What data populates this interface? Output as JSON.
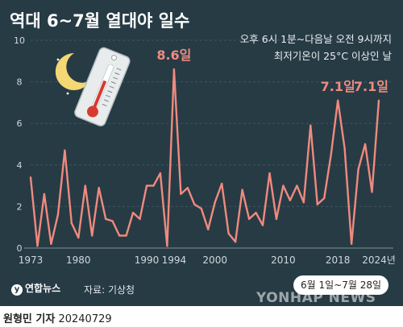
{
  "header": {
    "title": "역대 6~7월 열대야 일수",
    "subtitle_line1": "오후 6시 1분~다음날 오전 9시까지",
    "subtitle_line2": "최저기온이 25°C 이상인 날"
  },
  "footer": {
    "range_label": "6월 1일~7월 28일",
    "source": "자료: 기상청",
    "logo_text": "연합뉴스",
    "watermark": "YONHAP NEWS",
    "credit_name": "원형민 기자",
    "credit_date": "20240729"
  },
  "colors": {
    "panel": "#273b45",
    "line": "#f08a7e",
    "grid": "#3f5560",
    "axis_text": "#cfd8dc"
  },
  "icons": [
    "moon-icon",
    "thermometer-icon"
  ],
  "chart_data": {
    "type": "line",
    "title": "역대 6~7월 열대야 일수",
    "x_label_text": [
      "1973",
      "1980",
      "1990",
      "1994",
      "2000",
      "2010",
      "2018",
      "2024년"
    ],
    "x_label_years": [
      1973,
      1980,
      1990,
      1994,
      2000,
      2010,
      2018,
      2024
    ],
    "y_ticks": [
      0,
      2,
      4,
      6,
      8,
      10
    ],
    "ylim": [
      0,
      10
    ],
    "grid": true,
    "years": [
      1973,
      1974,
      1975,
      1976,
      1977,
      1978,
      1979,
      1980,
      1981,
      1982,
      1983,
      1984,
      1985,
      1986,
      1987,
      1988,
      1989,
      1990,
      1991,
      1992,
      1993,
      1994,
      1995,
      1996,
      1997,
      1998,
      1999,
      2000,
      2001,
      2002,
      2003,
      2004,
      2005,
      2006,
      2007,
      2008,
      2009,
      2010,
      2011,
      2012,
      2013,
      2014,
      2015,
      2016,
      2017,
      2018,
      2019,
      2020,
      2021,
      2022,
      2023,
      2024
    ],
    "values": [
      3.4,
      0.1,
      2.6,
      0.2,
      1.6,
      4.7,
      1.2,
      0.5,
      3.0,
      0.6,
      2.9,
      1.4,
      1.3,
      0.6,
      0.6,
      1.7,
      1.4,
      3.0,
      3.0,
      3.6,
      0.1,
      8.6,
      2.6,
      2.9,
      2.1,
      1.9,
      0.9,
      2.2,
      3.1,
      0.7,
      0.3,
      2.8,
      1.4,
      1.7,
      1.1,
      3.6,
      1.4,
      3.0,
      2.3,
      3.0,
      2.2,
      5.9,
      2.1,
      2.4,
      4.5,
      7.1,
      4.8,
      0.2,
      3.8,
      5.0,
      2.7,
      7.1
    ],
    "annotations": [
      {
        "year": 1994,
        "text": "8.6일"
      },
      {
        "year": 2018,
        "text": "7.1일"
      },
      {
        "year": 2024,
        "text": "7.1일"
      }
    ]
  }
}
